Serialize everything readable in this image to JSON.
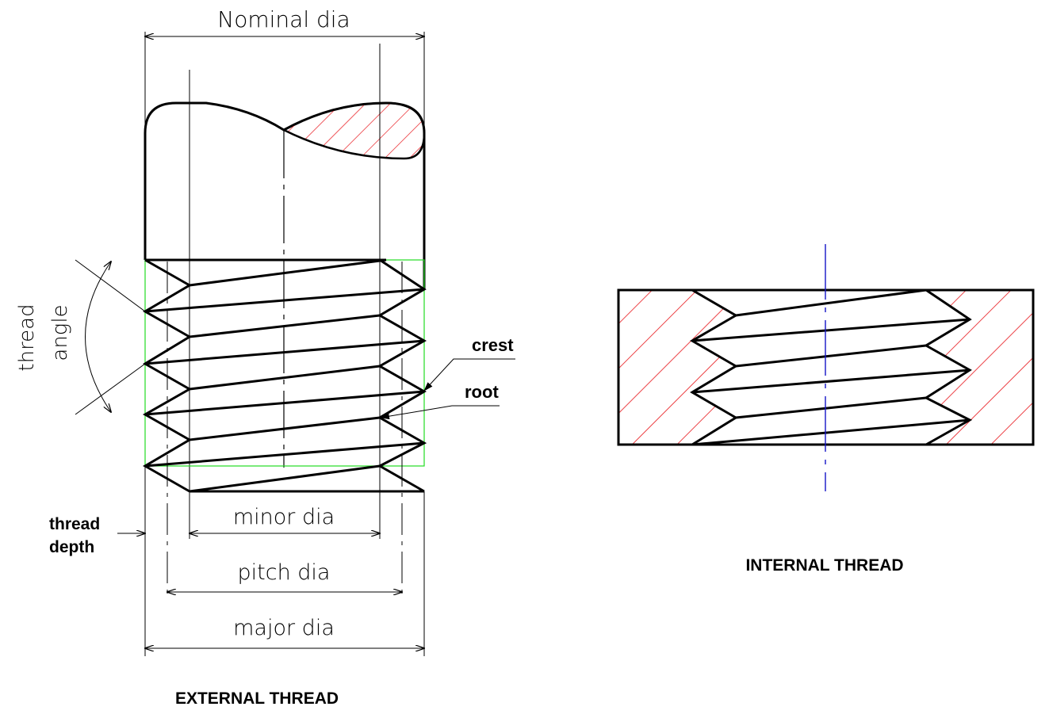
{
  "labels": {
    "nominal_dia": "Nominal dia",
    "thread_angle_line1": "thread",
    "thread_angle_line2": "angle",
    "crest": "crest",
    "root": "root",
    "thread_depth_line1": "thread",
    "thread_depth_line2": "depth",
    "minor_dia": "minor dia",
    "pitch_dia": "pitch dia",
    "major_dia": "major dia",
    "external_caption": "EXTERNAL THREAD",
    "internal_caption": "INTERNAL THREAD"
  },
  "colors": {
    "outline": "#000000",
    "hatch": "#e8171c",
    "pitch_frame": "#22dd22",
    "center_line": "#1515c8"
  }
}
